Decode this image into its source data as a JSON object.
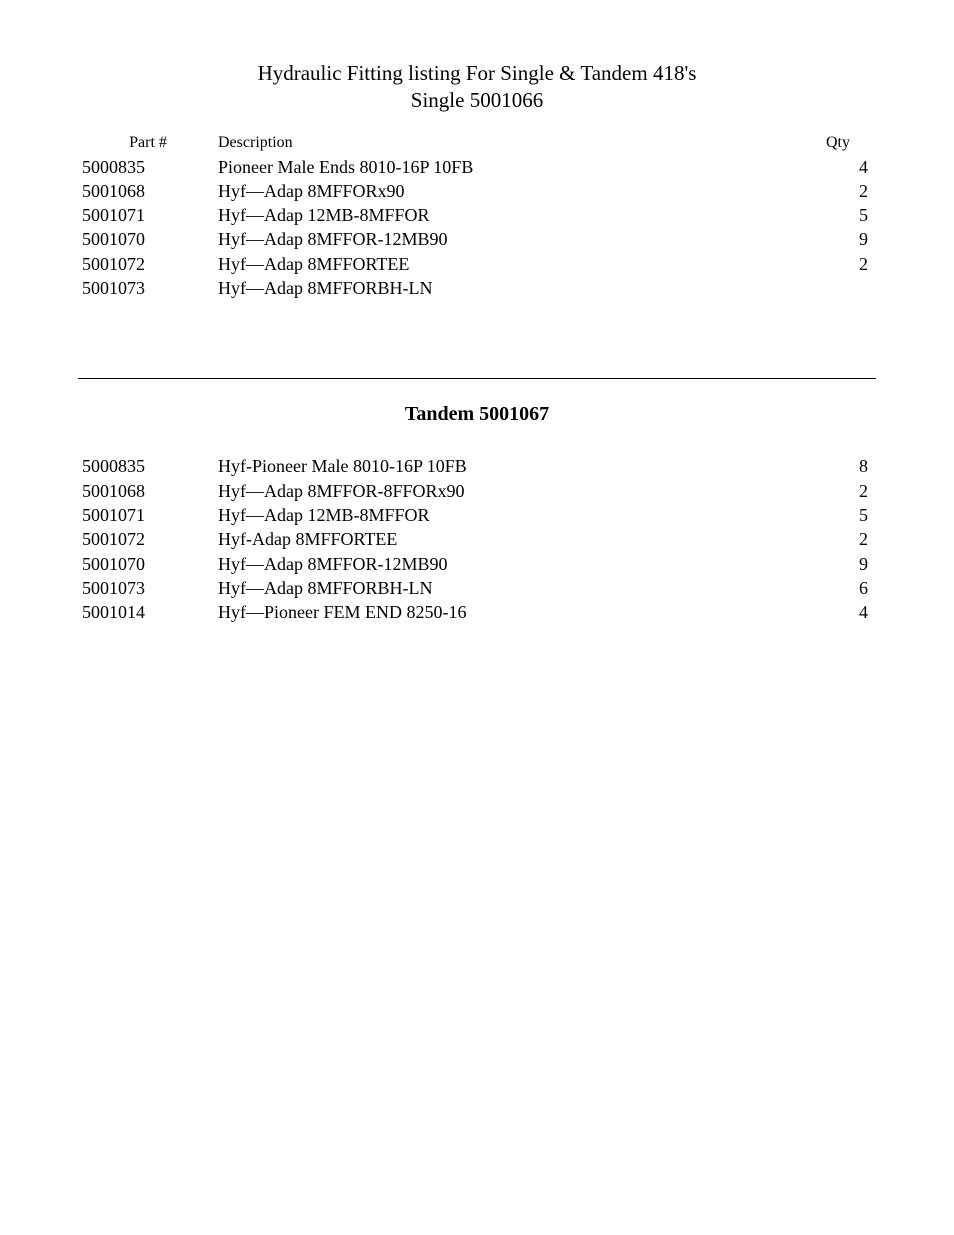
{
  "header": {
    "title_line1": "Hydraulic Fitting listing For Single & Tandem 418's",
    "title_line2": "Single 5001066"
  },
  "table1": {
    "columns": {
      "part": "Part #",
      "description": "Description",
      "qty": "Qty"
    },
    "rows": [
      {
        "part": "5000835",
        "description": "Pioneer Male Ends 8010-16P  10FB",
        "qty": "4"
      },
      {
        "part": "5001068",
        "description": "Hyf—Adap  8MFFORx90",
        "qty": "2"
      },
      {
        "part": "5001071",
        "description": "Hyf—Adap  12MB-8MFFOR",
        "qty": "5"
      },
      {
        "part": "5001070",
        "description": "Hyf—Adap  8MFFOR-12MB90",
        "qty": "9"
      },
      {
        "part": "5001072",
        "description": "Hyf—Adap  8MFFORTEE",
        "qty": "2"
      },
      {
        "part": "5001073",
        "description": "Hyf—Adap  8MFFORBH-LN",
        "qty": ""
      }
    ]
  },
  "section2": {
    "title": "Tandem 5001067"
  },
  "table2": {
    "rows": [
      {
        "part": "5000835",
        "description": "Hyf-Pioneer Male 8010-16P  10FB",
        "qty": "8"
      },
      {
        "part": "5001068",
        "description": "Hyf—Adap 8MFFOR-8FFORx90",
        "qty": "2"
      },
      {
        "part": "5001071",
        "description": "Hyf—Adap  12MB-8MFFOR",
        "qty": "5"
      },
      {
        "part": "5001072",
        "description": "Hyf-Adap  8MFFORTEE",
        "qty": "2"
      },
      {
        "part": "5001070",
        "description": "Hyf—Adap 8MFFOR-12MB90",
        "qty": "9"
      },
      {
        "part": "5001073",
        "description": "Hyf—Adap 8MFFORBH-LN",
        "qty": "6"
      },
      {
        "part": "5001014",
        "description": "Hyf—Pioneer FEM END 8250-16",
        "qty": "4"
      }
    ]
  },
  "styling": {
    "background_color": "#ffffff",
    "text_color": "#000000",
    "title_fontsize": 21,
    "header_fontsize": 16,
    "body_fontsize": 18,
    "section_title_fontsize": 20,
    "font_family": "Times New Roman"
  }
}
